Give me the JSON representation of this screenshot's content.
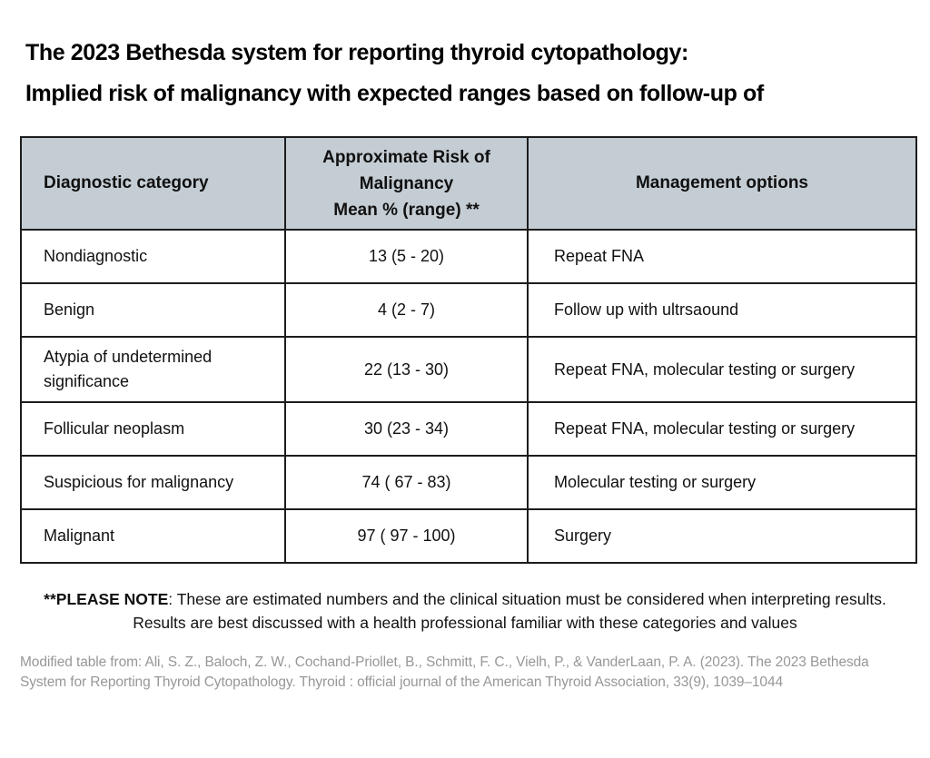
{
  "title": {
    "line1": "The 2023 Bethesda system for reporting thyroid cytopathology:",
    "line2": "Implied risk of malignancy with expected ranges based on follow-up of"
  },
  "table": {
    "header_bg_color": "#c5cdd4",
    "border_color": "#1c1c1c",
    "headers": [
      "Diagnostic category",
      "Approximate Risk of\nMalignancy\nMean % (range) **",
      "Management options"
    ],
    "rows": [
      {
        "category": "Nondiagnostic",
        "risk": "13 (5 - 20)",
        "management": "Repeat FNA"
      },
      {
        "category": "Benign",
        "risk": "4 (2 - 7)",
        "management": "Follow up with ultrsaound"
      },
      {
        "category": "Atypia of undetermined significance",
        "risk": "22 (13 - 30)",
        "management": "Repeat FNA, molecular testing or surgery"
      },
      {
        "category": "Follicular neoplasm",
        "risk": "30 (23 - 34)",
        "management": "Repeat FNA, molecular testing or surgery"
      },
      {
        "category": "Suspicious for malignancy",
        "risk": "74 ( 67 - 83)",
        "management": "Molecular testing or surgery"
      },
      {
        "category": "Malignant",
        "risk": "97 ( 97 - 100)",
        "management": "Surgery"
      }
    ]
  },
  "note": {
    "bold": "**PLEASE NOTE",
    "text": ": These are estimated numbers and the clinical situation must be considered when interpreting results.",
    "line2": "Results are best discussed with a health professional familiar with these categories and values"
  },
  "citation": "Modified table from: Ali, S. Z., Baloch, Z. W., Cochand-Priollet, B., Schmitt, F. C., Vielh, P., & VanderLaan, P. A. (2023). The 2023 Bethesda System for Reporting Thyroid Cytopathology. Thyroid : official journal of the American Thyroid Association, 33(9), 1039–1044"
}
